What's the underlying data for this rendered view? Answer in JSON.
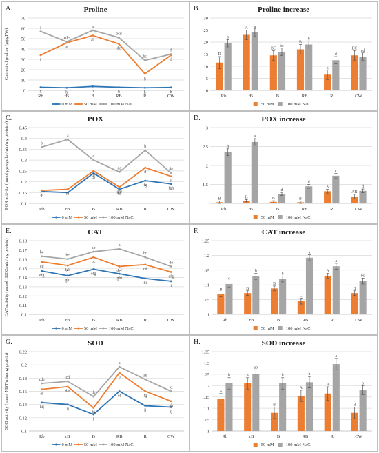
{
  "chart_data": [
    {
      "panel": "A.",
      "type": "line",
      "title": "Proline",
      "ylabel": "Content of proline (µg/gFW)",
      "ylim": [
        0,
        70
      ],
      "yticks": [
        0,
        10,
        20,
        30,
        40,
        50,
        60,
        70
      ],
      "categories": [
        "Rb",
        "rB",
        "B",
        "RB",
        "R",
        "CW"
      ],
      "series": [
        {
          "name": "0 mM",
          "color": "#2e75b6",
          "values": [
            3.0,
            2.5,
            3.8,
            3.0,
            2.5,
            2.8
          ],
          "letters": [
            "h",
            "h",
            "h",
            "h",
            "h",
            "h"
          ]
        },
        {
          "name": "50 mM",
          "color": "#ed7d31",
          "values": [
            34,
            46,
            53,
            45,
            16,
            34
          ],
          "letters": [
            "f",
            "e",
            "ab",
            "de",
            "g",
            "f"
          ]
        },
        {
          "name": "100 mM NaCl",
          "color": "#a5a5a5",
          "values": [
            57,
            47,
            58,
            51,
            29,
            35
          ],
          "letters": [
            "a",
            "cde",
            "a",
            "bcd",
            "bc",
            "f"
          ]
        }
      ]
    },
    {
      "panel": "B.",
      "type": "bar",
      "title": "Proline increase",
      "ylim": [
        0,
        30
      ],
      "yticks": [
        0,
        5,
        10,
        15,
        20,
        25,
        30
      ],
      "categories": [
        "Rb",
        "rB",
        "B",
        "RB",
        "R",
        "CW"
      ],
      "series": [
        {
          "name": "50 mM",
          "color": "#ed7d31",
          "values": [
            11.5,
            23,
            14.5,
            17,
            6.5,
            14.5
          ],
          "errors": [
            2.5,
            2,
            2,
            2,
            2,
            2
          ],
          "letters": [
            "D",
            "A",
            "BC",
            "B",
            "E",
            "BC"
          ]
        },
        {
          "name": "100 mM NaCl",
          "color": "#a5a5a5",
          "values": [
            19.5,
            24,
            16,
            19,
            12.5,
            14
          ],
          "errors": [
            1.5,
            1.5,
            1.5,
            1.5,
            1.5,
            1.5
          ],
          "letters": [
            "b",
            "a",
            "bc",
            "b",
            "d",
            "cd"
          ]
        }
      ]
    },
    {
      "panel": "C.",
      "type": "line",
      "title": "POX",
      "ylabel": "POX activity (mmol pyrogallol/min/mg proteins)",
      "ylim": [
        0.1,
        0.45
      ],
      "yticks": [
        0.1,
        0.15,
        0.2,
        0.25,
        0.3,
        0.35,
        0.4,
        0.45
      ],
      "ytickLabels": [
        "0.1",
        "0.15",
        "0.2",
        "0.25",
        "0.3",
        "0.35",
        "0.4",
        "0.45"
      ],
      "categories": [
        "Rb",
        "rB",
        "B",
        "RB",
        "R",
        "CW"
      ],
      "series": [
        {
          "name": "0 mM",
          "color": "#2e75b6",
          "values": [
            0.155,
            0.15,
            0.24,
            0.165,
            0.205,
            0.19
          ],
          "letters": [
            "hi",
            "i",
            "de",
            "hi",
            "fg",
            "fgh"
          ]
        },
        {
          "name": "50 mM",
          "color": "#ed7d31",
          "values": [
            0.16,
            0.165,
            0.25,
            0.175,
            0.265,
            0.225
          ],
          "letters": [
            "hi",
            "hi",
            "de",
            "ghi",
            "d",
            "ef"
          ]
        },
        {
          "name": "100 mM NaCl",
          "color": "#a5a5a5",
          "values": [
            0.36,
            0.395,
            0.3,
            0.245,
            0.345,
            0.24
          ],
          "letters": [
            "b",
            "a",
            "c",
            "de",
            "b",
            "de"
          ]
        }
      ]
    },
    {
      "panel": "D.",
      "type": "bar",
      "title": "POX increase",
      "ylim": [
        1,
        3
      ],
      "yticks": [
        1,
        1.5,
        2,
        2.5,
        3
      ],
      "ytickLabels": [
        "1",
        "1.5",
        "2",
        "2.5",
        "3"
      ],
      "categories": [
        "Rb",
        "rB",
        "B",
        "RB",
        "R",
        "CW"
      ],
      "series": [
        {
          "name": "50 mM",
          "color": "#ed7d31",
          "values": [
            1.03,
            1.07,
            1.04,
            1.03,
            1.32,
            1.18
          ],
          "errors": [
            0.03,
            0.03,
            0.03,
            0.03,
            0.05,
            0.06
          ],
          "letters": [
            "B",
            "B",
            "B",
            "B",
            "A",
            "AB"
          ]
        },
        {
          "name": "100 mM NaCl",
          "color": "#a5a5a5",
          "values": [
            2.35,
            2.62,
            1.25,
            1.45,
            1.73,
            1.33
          ],
          "errors": [
            0.09,
            0.09,
            0.04,
            0.05,
            0.06,
            0.05
          ],
          "letters": [
            "b",
            "a",
            "d",
            "d",
            "c",
            "d"
          ]
        }
      ]
    },
    {
      "panel": "E.",
      "type": "line",
      "title": "CAT",
      "ylabel": "CAT activity (mmol H2O2/min/mg protein)",
      "ylim": [
        0.1,
        0.18
      ],
      "yticks": [
        0.1,
        0.11,
        0.12,
        0.13,
        0.14,
        0.15,
        0.16,
        0.17,
        0.18
      ],
      "ytickLabels": [
        "0.1",
        "0.11",
        "0.12",
        "0.13",
        "0.14",
        "0.15",
        "0.16",
        "0.17",
        "0.18"
      ],
      "categories": [
        "Rb",
        "rB",
        "B",
        "RB",
        "R",
        "CW"
      ],
      "series": [
        {
          "name": "0 mM",
          "color": "#2e75b6",
          "values": [
            0.147,
            0.142,
            0.149,
            0.144,
            0.139,
            0.136
          ],
          "letters": [
            "efg",
            "ghi",
            "efg",
            "ghi",
            "hi",
            "i"
          ]
        },
        {
          "name": "50 mM",
          "color": "#ed7d31",
          "values": [
            0.157,
            0.153,
            0.162,
            0.152,
            0.154,
            0.146
          ],
          "letters": [
            "cd",
            "fgh",
            "bc",
            "def",
            "cd",
            "efg"
          ]
        },
        {
          "name": "100 mM NaCl",
          "color": "#a5a5a5",
          "values": [
            0.163,
            0.16,
            0.168,
            0.171,
            0.162,
            0.152
          ],
          "letters": [
            "bc",
            "bc",
            "ab",
            "a",
            "bc",
            "de"
          ]
        }
      ]
    },
    {
      "panel": "F.",
      "type": "bar",
      "title": "CAT increase",
      "ylim": [
        1,
        1.25
      ],
      "yticks": [
        1,
        1.05,
        1.1,
        1.15,
        1.2,
        1.25
      ],
      "ytickLabels": [
        "1",
        "1.05",
        "1.1",
        "1.15",
        "1.2",
        "1.25"
      ],
      "categories": [
        "Rb",
        "rB",
        "B",
        "RB",
        "R",
        "CW"
      ],
      "series": [
        {
          "name": "50 mM",
          "color": "#ed7d31",
          "values": [
            1.068,
            1.072,
            1.088,
            1.045,
            1.131,
            1.072
          ],
          "errors": [
            0.008,
            0.008,
            0.008,
            0.01,
            0.008,
            0.008
          ],
          "letters": [
            "B",
            "B",
            "B",
            "C",
            "A",
            "B"
          ]
        },
        {
          "name": "100 mM NaCl",
          "color": "#a5a5a5",
          "values": [
            1.103,
            1.129,
            1.12,
            1.192,
            1.163,
            1.113
          ],
          "errors": [
            0.01,
            0.01,
            0.01,
            0.01,
            0.01,
            0.01
          ],
          "letters": [
            "c",
            "b",
            "b",
            "a",
            "a",
            "bc"
          ]
        }
      ]
    },
    {
      "panel": "G.",
      "type": "line",
      "title": "SOD",
      "ylabel": "SOD activity (mmol NBT/min/mg protein)",
      "ylim": [
        0.1,
        0.22
      ],
      "yticks": [
        0.1,
        0.12,
        0.14,
        0.16,
        0.18,
        0.2,
        0.22
      ],
      "ytickLabels": [
        "0.1",
        "0.12",
        "0.14",
        "0.16",
        "0.18",
        "0.2",
        "0.22"
      ],
      "categories": [
        "Rb",
        "rB",
        "B",
        "RB",
        "R",
        "CW"
      ],
      "series": [
        {
          "name": "0 mM",
          "color": "#2e75b6",
          "values": [
            0.143,
            0.14,
            0.125,
            0.16,
            0.138,
            0.136
          ],
          "letters": [
            "hij",
            "ij",
            "j",
            "ef",
            "ij",
            "ij"
          ]
        },
        {
          "name": "50 mM",
          "color": "#ed7d31",
          "values": [
            0.163,
            0.167,
            0.135,
            0.188,
            0.16,
            0.145
          ],
          "letters": [
            "ef",
            "def",
            "hi",
            "b",
            "fg",
            "gh"
          ]
        },
        {
          "name": "100 mM NaCl",
          "color": "#a5a5a5",
          "values": [
            0.172,
            0.175,
            0.152,
            0.197,
            0.178,
            0.16
          ],
          "letters": [
            "cde",
            "cd",
            "de",
            "a",
            "ab",
            "c"
          ]
        }
      ]
    },
    {
      "panel": "H.",
      "type": "bar",
      "title": "SOD increase",
      "ylim": [
        1,
        1.35
      ],
      "yticks": [
        1,
        1.05,
        1.1,
        1.15,
        1.2,
        1.25,
        1.3,
        1.35
      ],
      "ytickLabels": [
        "1",
        "1.05",
        "1.1",
        "1.15",
        "1.2",
        "1.25",
        "1.3",
        "1.35"
      ],
      "categories": [
        "Rb",
        "rB",
        "B",
        "RB",
        "R",
        "CW"
      ],
      "series": [
        {
          "name": "50 mM",
          "color": "#ed7d31",
          "values": [
            1.14,
            1.21,
            1.08,
            1.155,
            1.165,
            1.08
          ],
          "errors": [
            0.025,
            0.025,
            0.025,
            0.025,
            0.03,
            0.025
          ],
          "letters": [
            "A",
            "A",
            "B",
            "A",
            "A",
            "B"
          ]
        },
        {
          "name": "100 mM NaCl",
          "color": "#a5a5a5",
          "values": [
            1.21,
            1.25,
            1.21,
            1.215,
            1.295,
            1.18
          ],
          "errors": [
            0.025,
            0.02,
            0.025,
            0.025,
            0.025,
            0.02
          ],
          "letters": [
            "b",
            "ab",
            "b",
            "b",
            "a",
            "b"
          ]
        }
      ]
    }
  ]
}
